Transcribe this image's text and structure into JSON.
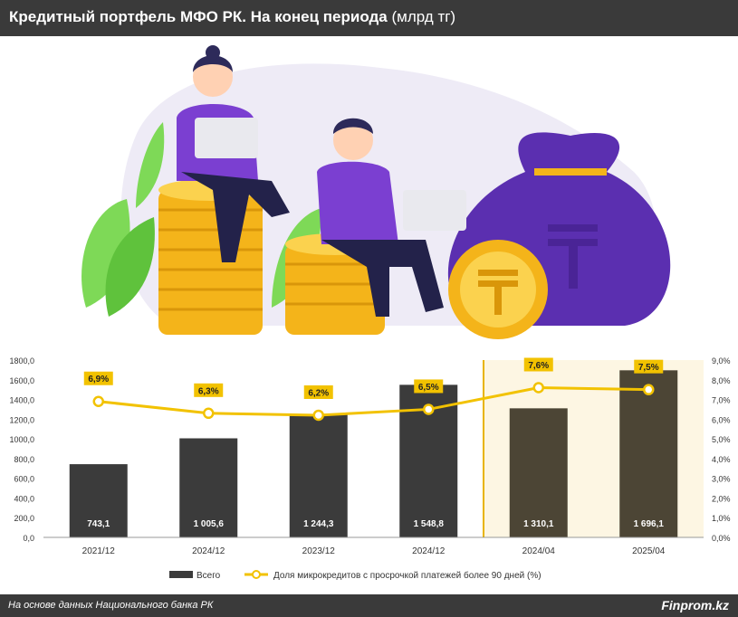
{
  "header": {
    "title": "Кредитный портфель МФО РК. На конец периода",
    "unit": "(млрд тг)"
  },
  "colors": {
    "bar": "#3b3b3b",
    "bar_highlight": "#4c4535",
    "line": "#f2c200",
    "label_bg": "#f2c200",
    "highlight_bg": "#fdf6e3",
    "highlight_border": "#e8b400"
  },
  "chart_data": {
    "type": "bar",
    "categories": [
      "2021/12",
      "2024/12",
      "2023/12",
      "2024/12",
      "2024/04",
      "2025/04"
    ],
    "series": [
      {
        "name": "Всего",
        "type": "bar",
        "axis": "left",
        "values": [
          743.1,
          1005.6,
          1244.3,
          1548.8,
          1310.1,
          1696.1
        ],
        "labels": [
          "743,1",
          "1 005,6",
          "1 244,3",
          "1 548,8",
          "1 310,1",
          "1 696,1"
        ]
      },
      {
        "name": "Доля микрокредитов с просрочкой платежей более 90 дней (%)",
        "type": "line",
        "axis": "right",
        "values": [
          6.9,
          6.3,
          6.2,
          6.5,
          7.6,
          7.5
        ],
        "labels": [
          "6,9%",
          "6,3%",
          "6,2%",
          "6,5%",
          "7,6%",
          "7,5%"
        ]
      }
    ],
    "y_left": {
      "ylim": [
        0,
        1800
      ],
      "ticks": [
        "0,0",
        "200,0",
        "400,0",
        "600,0",
        "800,0",
        "1000,0",
        "1200,0",
        "1400,0",
        "1600,0",
        "1800,0"
      ]
    },
    "y_right": {
      "ylim": [
        0,
        9
      ],
      "ticks": [
        "0,0%",
        "1,0%",
        "2,0%",
        "3,0%",
        "4,0%",
        "5,0%",
        "6,0%",
        "7,0%",
        "8,0%",
        "9,0%"
      ]
    },
    "highlight_categories": [
      4,
      5
    ],
    "legend": "bottom",
    "grid": false
  },
  "footer": {
    "source": "На основе данных Национального банка РК",
    "brand": "Finprom.kz"
  }
}
